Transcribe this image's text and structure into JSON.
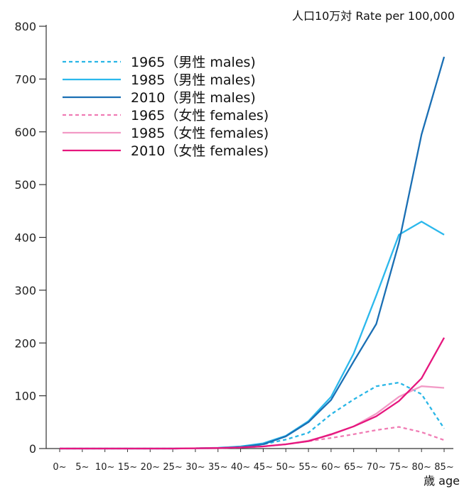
{
  "chart_data": {
    "type": "line",
    "title": "",
    "ylabel": "人口10万対 Rate per 100,000",
    "xlabel": "歳 age",
    "ylim": [
      0,
      800
    ],
    "yticks": [
      0,
      100,
      200,
      300,
      400,
      500,
      600,
      700,
      800
    ],
    "grid": false,
    "legend_position": "top-left",
    "categories": [
      "0~",
      "5~",
      "10~",
      "15~",
      "20~",
      "25~",
      "30~",
      "35~",
      "40~",
      "45~",
      "50~",
      "55~",
      "60~",
      "65~",
      "70~",
      "75~",
      "80~",
      "85~"
    ],
    "series": [
      {
        "name": "1965（男性 males)",
        "color": "#29b6e6",
        "dashed": true,
        "values": [
          0,
          0,
          0,
          0,
          0,
          0,
          0.5,
          1,
          3,
          8,
          17,
          30,
          65,
          93,
          118,
          125,
          103,
          38
        ]
      },
      {
        "name": "1985（男性 males)",
        "color": "#2bb8ec",
        "dashed": false,
        "values": [
          0,
          0,
          0,
          0,
          0,
          0,
          0.5,
          1.5,
          4,
          10,
          24,
          52,
          98,
          180,
          290,
          405,
          430,
          405
        ]
      },
      {
        "name": "2010（男性 males)",
        "color": "#1a6fb4",
        "dashed": false,
        "values": [
          0,
          0,
          0,
          0,
          0,
          0,
          0.5,
          1,
          3,
          8,
          23,
          50,
          92,
          165,
          236,
          390,
          595,
          742
        ]
      },
      {
        "name": "1965（女性 females)",
        "color": "#f07cb4",
        "dashed": true,
        "values": [
          0,
          0,
          0,
          0,
          0,
          0,
          0.5,
          1,
          2,
          4,
          8,
          14,
          20,
          27,
          35,
          41,
          31,
          16
        ]
      },
      {
        "name": "1985（女性 females)",
        "color": "#f29ac6",
        "dashed": false,
        "values": [
          0,
          0,
          0,
          0,
          0,
          0,
          0.5,
          1,
          2,
          4,
          8,
          15,
          26,
          42,
          66,
          98,
          118,
          115
        ]
      },
      {
        "name": "2010（女性 females)",
        "color": "#e6167e",
        "dashed": false,
        "values": [
          0,
          0,
          0,
          0,
          0,
          0,
          0.5,
          1,
          2,
          4,
          8,
          14,
          27,
          42,
          61,
          90,
          133,
          210
        ]
      }
    ]
  }
}
